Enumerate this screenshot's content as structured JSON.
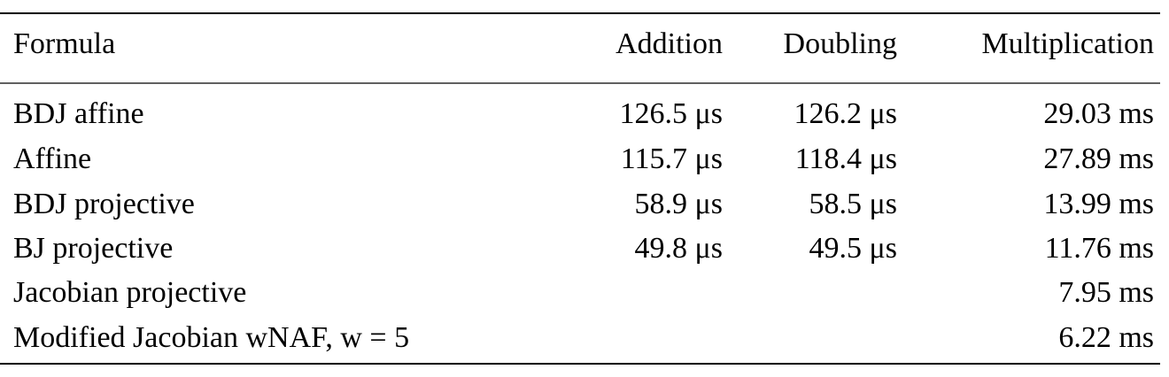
{
  "table": {
    "header": [
      "Formula",
      "Addition",
      "Doubling",
      "Multiplication"
    ],
    "rows": [
      [
        "BDJ affine",
        "126.5 μs",
        "126.2 μs",
        "29.03 ms"
      ],
      [
        "Affine",
        "115.7 μs",
        "118.4 μs",
        "27.89 ms"
      ],
      [
        "BDJ projective",
        "58.9 μs",
        "58.5 μs",
        "13.99 ms"
      ],
      [
        "BJ projective",
        "49.8 μs",
        "49.5 μs",
        "11.76 ms"
      ],
      [
        "Jacobian projective",
        null,
        null,
        "7.95 ms"
      ],
      [
        "Modified Jacobian wNAF, w = 5",
        null,
        null,
        "6.22 ms"
      ]
    ]
  }
}
